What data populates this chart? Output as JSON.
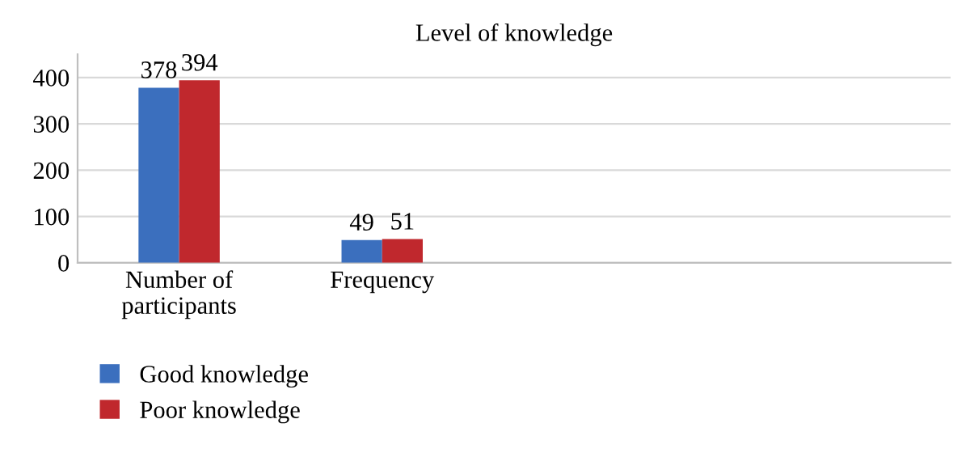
{
  "chart_data": {
    "type": "bar",
    "title": "Level of knowledge",
    "categories": [
      "Number of\nparticipants",
      "Frequency"
    ],
    "series": [
      {
        "name": "Good knowledge",
        "color": "#3b6fbe",
        "values": [
          378,
          49
        ]
      },
      {
        "name": "Poor knowledge",
        "color": "#c0282d",
        "values": [
          394,
          51
        ]
      }
    ],
    "ylim": [
      0,
      450
    ],
    "yticks": [
      0,
      100,
      200,
      300,
      400
    ],
    "grid": "y",
    "legend": "bottom left",
    "data_labels": true
  }
}
